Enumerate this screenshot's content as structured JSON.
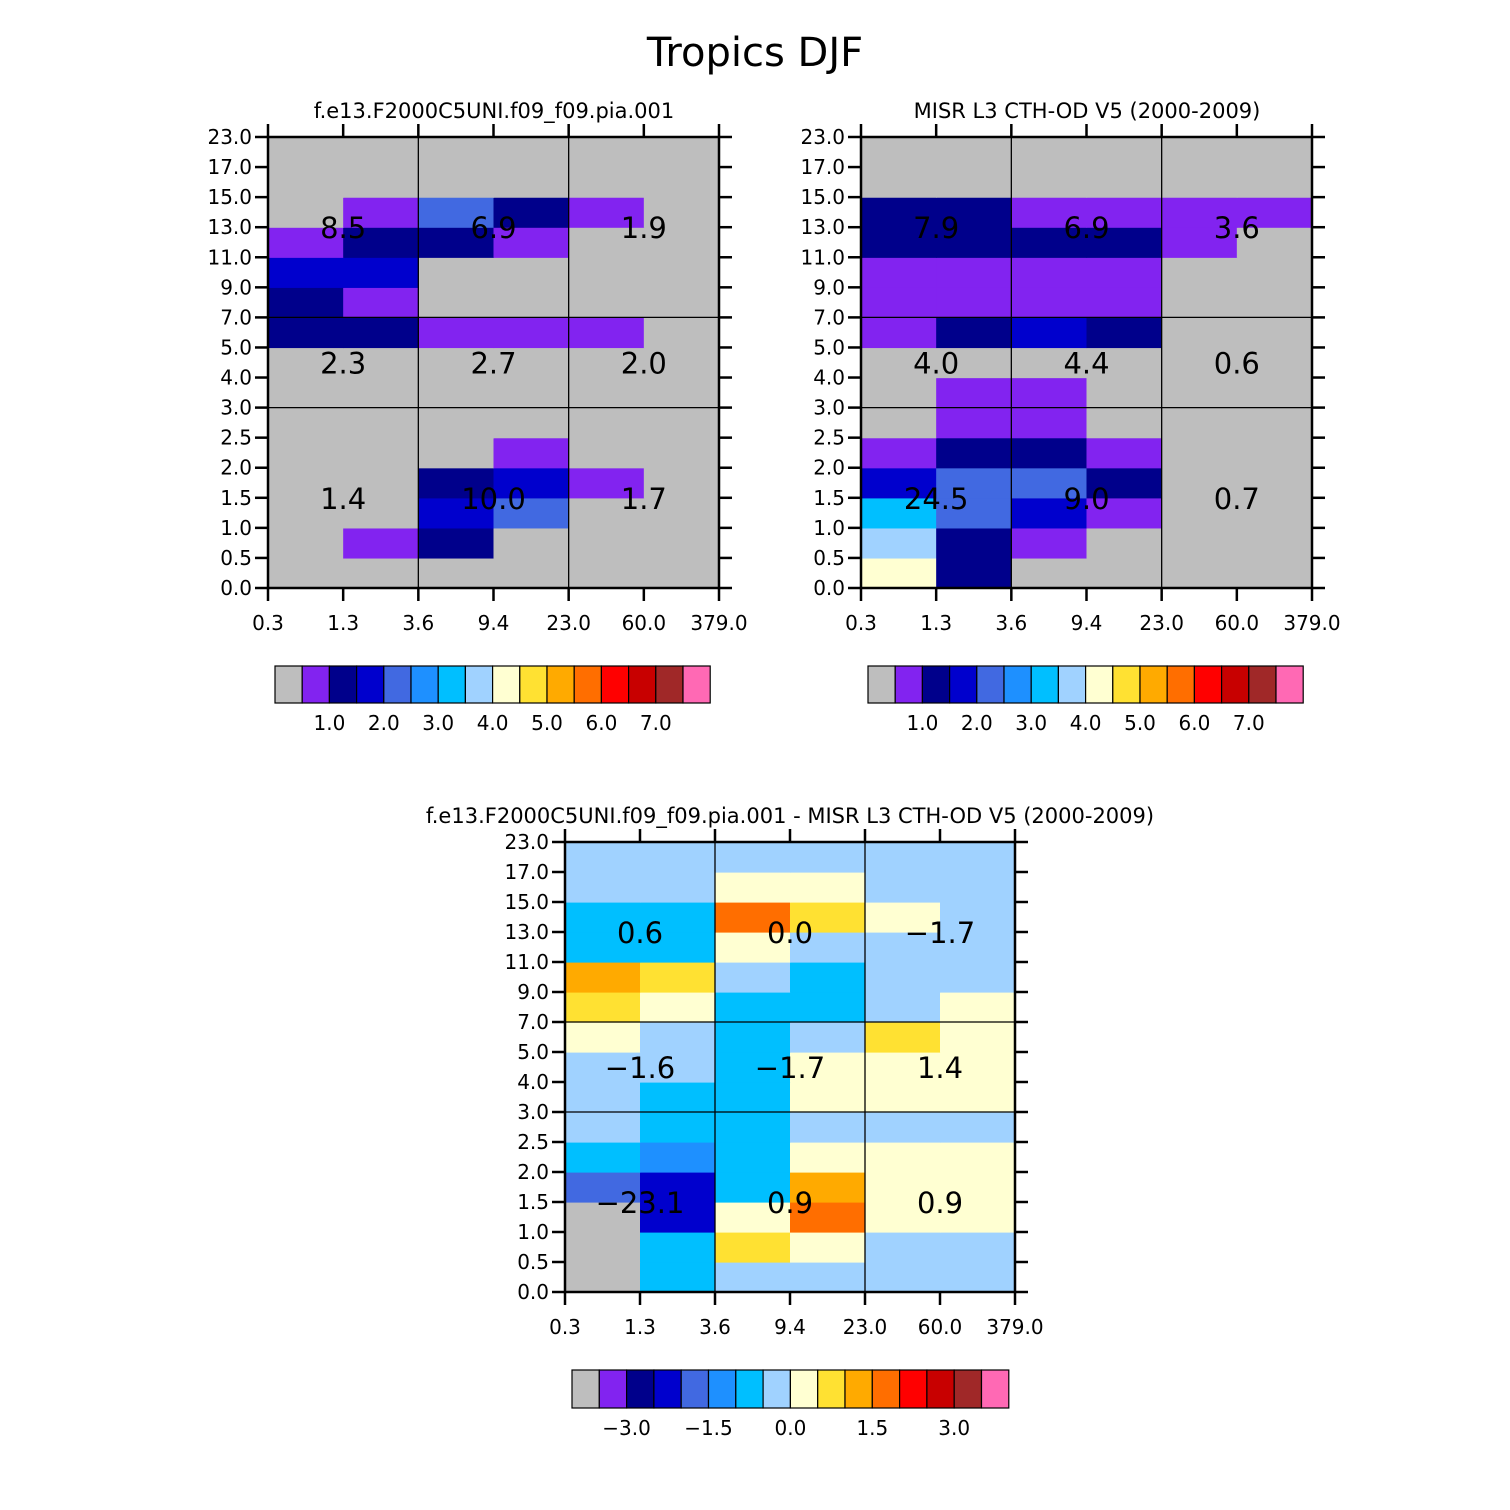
{
  "title": "Tropics DJF",
  "chart_data": [
    {
      "type": "heatmap",
      "panel": "model",
      "title": "f.e13.F2000C5UNI.f09_f09.pia.001",
      "xlabel": "",
      "ylabel": "",
      "x_ticks": [
        "0.3",
        "1.3",
        "3.6",
        "9.4",
        "23.0",
        "60.0",
        "379.0"
      ],
      "y_ticks": [
        "0.0",
        "0.5",
        "1.0",
        "1.5",
        "2.0",
        "2.5",
        "3.0",
        "4.0",
        "5.0",
        "7.0",
        "9.0",
        "11.0",
        "13.0",
        "15.0",
        "17.0",
        "23.0"
      ],
      "levels": [
        "1.0",
        "2.0",
        "3.0",
        "4.0",
        "5.0",
        "6.0",
        "7.0"
      ],
      "grid_rows_bottom_to_top": [
        [
          0,
          0,
          0,
          0,
          0,
          0
        ],
        [
          0,
          1,
          2,
          0,
          0,
          0
        ],
        [
          0,
          0,
          3,
          4,
          0,
          0
        ],
        [
          0,
          0,
          2,
          3,
          1,
          0
        ],
        [
          0,
          0,
          0,
          1,
          0,
          0
        ],
        [
          0,
          0,
          0,
          0,
          0,
          0
        ],
        [
          0,
          0,
          0,
          0,
          0,
          0
        ],
        [
          0,
          0,
          0,
          0,
          0,
          0
        ],
        [
          2,
          2,
          1,
          1,
          1,
          0
        ],
        [
          2,
          1,
          0,
          0,
          0,
          0
        ],
        [
          3,
          3,
          0,
          0,
          0,
          0
        ],
        [
          1,
          2,
          2,
          1,
          0,
          0
        ],
        [
          0,
          1,
          4,
          2,
          1,
          0
        ],
        [
          0,
          0,
          0,
          0,
          0,
          0
        ],
        [
          0,
          0,
          0,
          0,
          0,
          0
        ]
      ],
      "bin_totals": [
        {
          "label": "8.5",
          "col": 1,
          "band": "high"
        },
        {
          "label": "6.9",
          "col": 3,
          "band": "high"
        },
        {
          "label": "1.9",
          "col": 5,
          "band": "high"
        },
        {
          "label": "2.3",
          "col": 1,
          "band": "mid"
        },
        {
          "label": "2.7",
          "col": 3,
          "band": "mid"
        },
        {
          "label": "2.0",
          "col": 5,
          "band": "mid"
        },
        {
          "label": "1.4",
          "col": 1,
          "band": "low"
        },
        {
          "label": "10.0",
          "col": 3,
          "band": "low"
        },
        {
          "label": "1.7",
          "col": 5,
          "band": "low"
        }
      ]
    },
    {
      "type": "heatmap",
      "panel": "observations",
      "title": "MISR L3 CTH-OD V5 (2000-2009)",
      "xlabel": "",
      "ylabel": "",
      "x_ticks": [
        "0.3",
        "1.3",
        "3.6",
        "9.4",
        "23.0",
        "60.0",
        "379.0"
      ],
      "y_ticks": [
        "0.0",
        "0.5",
        "1.0",
        "1.5",
        "2.0",
        "2.5",
        "3.0",
        "4.0",
        "5.0",
        "7.0",
        "9.0",
        "11.0",
        "13.0",
        "15.0",
        "17.0",
        "23.0"
      ],
      "levels": [
        "1.0",
        "2.0",
        "3.0",
        "4.0",
        "5.0",
        "6.0",
        "7.0"
      ],
      "grid_rows_bottom_to_top": [
        [
          8,
          2,
          0,
          0,
          0,
          0
        ],
        [
          7,
          2,
          1,
          0,
          0,
          0
        ],
        [
          6,
          4,
          3,
          1,
          0,
          0
        ],
        [
          3,
          4,
          4,
          2,
          0,
          0
        ],
        [
          1,
          2,
          2,
          1,
          0,
          0
        ],
        [
          0,
          1,
          1,
          0,
          0,
          0
        ],
        [
          0,
          1,
          1,
          0,
          0,
          0
        ],
        [
          0,
          0,
          0,
          0,
          0,
          0
        ],
        [
          1,
          2,
          3,
          2,
          0,
          0
        ],
        [
          1,
          1,
          1,
          1,
          0,
          0
        ],
        [
          1,
          1,
          1,
          1,
          0,
          0
        ],
        [
          2,
          2,
          2,
          2,
          1,
          0
        ],
        [
          2,
          2,
          1,
          1,
          1,
          1
        ],
        [
          0,
          0,
          0,
          0,
          0,
          0
        ],
        [
          0,
          0,
          0,
          0,
          0,
          0
        ]
      ],
      "bin_totals": [
        {
          "label": "7.9",
          "col": 1,
          "band": "high"
        },
        {
          "label": "6.9",
          "col": 3,
          "band": "high"
        },
        {
          "label": "3.6",
          "col": 5,
          "band": "high"
        },
        {
          "label": "4.0",
          "col": 1,
          "band": "mid"
        },
        {
          "label": "4.4",
          "col": 3,
          "band": "mid"
        },
        {
          "label": "0.6",
          "col": 5,
          "band": "mid"
        },
        {
          "label": "24.5",
          "col": 1,
          "band": "low"
        },
        {
          "label": "9.0",
          "col": 3,
          "band": "low"
        },
        {
          "label": "0.7",
          "col": 5,
          "band": "low"
        }
      ]
    },
    {
      "type": "heatmap",
      "panel": "difference",
      "title": "f.e13.F2000C5UNI.f09_f09.pia.001 - MISR L3 CTH-OD V5 (2000-2009)",
      "xlabel": "",
      "ylabel": "",
      "x_ticks": [
        "0.3",
        "1.3",
        "3.6",
        "9.4",
        "23.0",
        "60.0",
        "379.0"
      ],
      "y_ticks": [
        "0.0",
        "0.5",
        "1.0",
        "1.5",
        "2.0",
        "2.5",
        "3.0",
        "4.0",
        "5.0",
        "7.0",
        "9.0",
        "11.0",
        "13.0",
        "15.0",
        "17.0",
        "23.0"
      ],
      "levels": [
        "-3.0",
        "-1.5",
        "0.0",
        "1.5",
        "3.0"
      ],
      "grid_rows_bottom_to_top": [
        [
          0,
          6,
          7,
          7,
          7,
          7
        ],
        [
          0,
          6,
          9,
          8,
          7,
          7
        ],
        [
          0,
          3,
          8,
          11,
          8,
          8
        ],
        [
          4,
          3,
          6,
          10,
          8,
          8
        ],
        [
          6,
          5,
          6,
          8,
          8,
          8
        ],
        [
          7,
          6,
          6,
          7,
          7,
          7
        ],
        [
          7,
          6,
          6,
          8,
          8,
          8
        ],
        [
          7,
          7,
          6,
          8,
          8,
          8
        ],
        [
          8,
          7,
          6,
          7,
          9,
          8
        ],
        [
          9,
          8,
          6,
          6,
          7,
          8
        ],
        [
          10,
          9,
          7,
          6,
          7,
          7
        ],
        [
          6,
          6,
          8,
          7,
          7,
          7
        ],
        [
          6,
          6,
          11,
          9,
          8,
          7
        ],
        [
          7,
          7,
          8,
          8,
          7,
          7
        ],
        [
          7,
          7,
          7,
          7,
          7,
          7
        ]
      ],
      "bin_totals": [
        {
          "label": "0.6",
          "col": 1,
          "band": "high"
        },
        {
          "label": "0.0",
          "col": 3,
          "band": "high"
        },
        {
          "label": "-1.7",
          "col": 5,
          "band": "high"
        },
        {
          "label": "-1.6",
          "col": 1,
          "band": "mid"
        },
        {
          "label": "-1.7",
          "col": 3,
          "band": "mid"
        },
        {
          "label": "1.4",
          "col": 5,
          "band": "mid"
        },
        {
          "label": "-23.1",
          "col": 1,
          "band": "low"
        },
        {
          "label": "0.9",
          "col": 3,
          "band": "low"
        },
        {
          "label": "0.9",
          "col": 5,
          "band": "low"
        }
      ]
    }
  ],
  "colors": {
    "palette": [
      "#bebebe",
      "#8223f0",
      "#00008b",
      "#0000cd",
      "#4169e1",
      "#1e90ff",
      "#00bfff",
      "#a0d2ff",
      "#ffffd2",
      "#ffe132",
      "#ffaa00",
      "#ff6e00",
      "#ff0000",
      "#c80000",
      "#a02828",
      "#ff69b4"
    ],
    "grid_line": "#000000"
  }
}
